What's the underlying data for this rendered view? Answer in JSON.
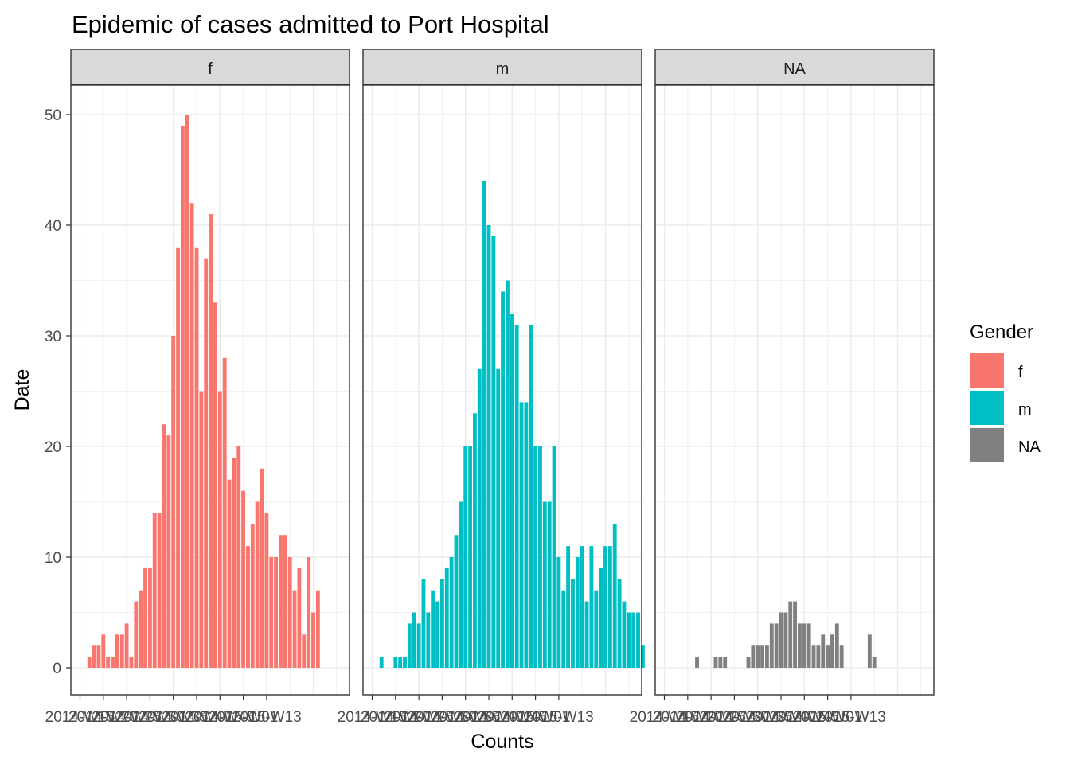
{
  "chart_data": {
    "type": "bar",
    "title": "Epidemic of cases admitted to Port Hospital",
    "xlabel": "Counts",
    "ylabel": "Date",
    "ylim": [
      0,
      50
    ],
    "y_ticks": [
      0,
      10,
      20,
      30,
      40,
      50
    ],
    "x_tick_labels": [
      "2014-W15",
      "2014-W20",
      "2014-W25",
      "2014-W30",
      "2014-W35",
      "2014-W40",
      "2014-W45",
      "2015-W01",
      "2015-W13"
    ],
    "grid": true,
    "legend": {
      "title": "Gender",
      "placement": "right",
      "entries": [
        {
          "label": "f",
          "color": "#F8766D"
        },
        {
          "label": "m",
          "color": "#00BFC4"
        },
        {
          "label": "NA",
          "color": "#808080"
        }
      ]
    },
    "panels": [
      {
        "label": "f",
        "color": "#F8766D",
        "start_week": 2,
        "values": [
          1,
          2,
          2,
          3,
          1,
          1,
          3,
          3,
          4,
          1,
          6,
          7,
          9,
          9,
          14,
          14,
          22,
          21,
          30,
          38,
          49,
          50,
          42,
          38,
          25,
          37,
          41,
          33,
          25,
          28,
          17,
          19,
          20,
          16,
          11,
          13,
          15,
          18,
          14,
          10,
          10,
          12,
          12,
          10,
          7,
          9,
          3,
          10,
          5,
          7
        ]
      },
      {
        "label": "m",
        "color": "#00BFC4",
        "start_week": 2,
        "values": [
          1,
          0,
          0,
          1,
          1,
          1,
          4,
          5,
          4,
          8,
          5,
          7,
          6,
          8,
          9,
          10,
          12,
          15,
          20,
          20,
          23,
          27,
          44,
          40,
          39,
          27,
          34,
          35,
          32,
          31,
          24,
          24,
          31,
          20,
          20,
          15,
          15,
          20,
          10,
          7,
          11,
          8,
          10,
          11,
          6,
          11,
          7,
          9,
          11,
          11,
          13,
          8,
          6,
          5,
          5,
          5,
          2
        ]
      },
      {
        "label": "NA",
        "color": "#808080",
        "start_week": 7,
        "values": [
          1,
          0,
          0,
          0,
          1,
          1,
          1,
          0,
          0,
          0,
          0,
          1,
          2,
          2,
          2,
          2,
          4,
          4,
          5,
          5,
          6,
          6,
          4,
          4,
          4,
          2,
          2,
          3,
          2,
          3,
          4,
          2,
          0,
          0,
          0,
          0,
          0,
          3,
          1
        ]
      }
    ]
  }
}
